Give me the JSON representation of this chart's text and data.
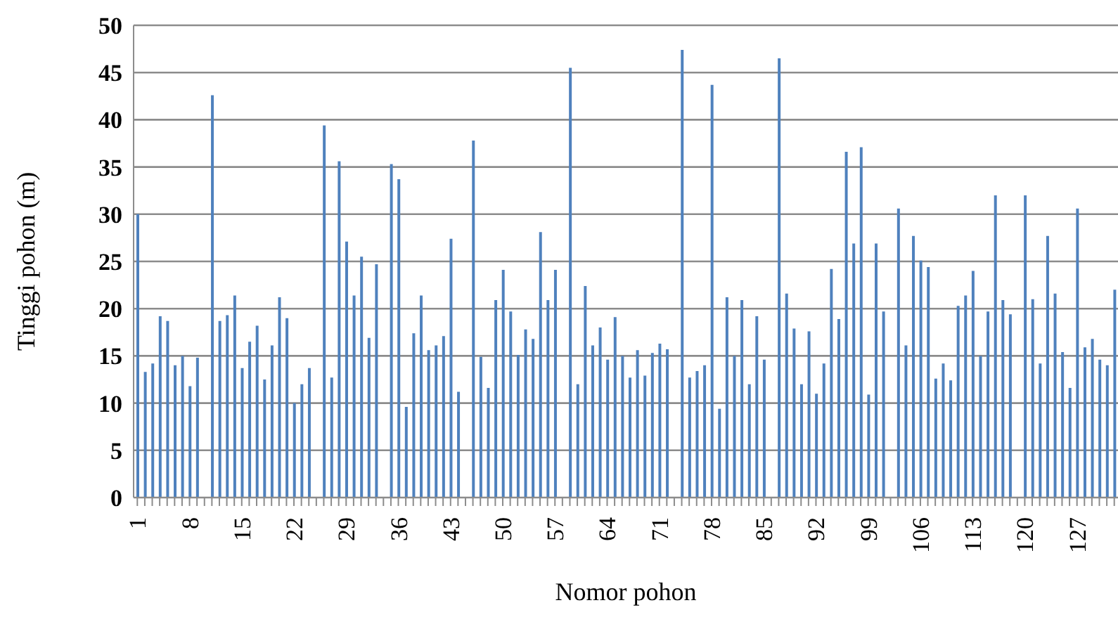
{
  "chart_data": {
    "type": "bar",
    "xlabel": "Nomor pohon",
    "ylabel": "Tinggi pohon (m)",
    "categories": [
      "1",
      null,
      null,
      null,
      null,
      null,
      null,
      "8",
      null,
      null,
      null,
      null,
      null,
      null,
      "15",
      null,
      null,
      null,
      null,
      null,
      null,
      "22",
      null,
      null,
      null,
      null,
      null,
      null,
      "29",
      null,
      null,
      null,
      null,
      null,
      null,
      "36",
      null,
      null,
      null,
      null,
      null,
      null,
      "43",
      null,
      null,
      null,
      null,
      null,
      null,
      "50",
      null,
      null,
      null,
      null,
      null,
      null,
      "57",
      null,
      null,
      null,
      null,
      null,
      null,
      "64",
      null,
      null,
      null,
      null,
      null,
      null,
      "71",
      null,
      null,
      null,
      null,
      null,
      null,
      "78",
      null,
      null,
      null,
      null,
      null,
      null,
      "85",
      null,
      null,
      null,
      null,
      null,
      null,
      "92",
      null,
      null,
      null,
      null,
      null,
      null,
      "99",
      null,
      null,
      null,
      null,
      null,
      null,
      "106",
      null,
      null,
      null,
      null,
      null,
      null,
      "113",
      null,
      null,
      null,
      null,
      null,
      null,
      "120",
      null,
      null,
      null,
      null,
      null,
      null,
      "127",
      null,
      null,
      null,
      null,
      null
    ],
    "values": [
      30,
      13.3,
      14.2,
      19.2,
      18.7,
      14,
      15,
      11.8,
      14.8,
      null,
      42.6,
      18.7,
      19.3,
      21.4,
      13.7,
      16.5,
      18.2,
      12.5,
      16.1,
      21.2,
      19,
      10,
      12,
      13.7,
      null,
      39.4,
      12.7,
      35.6,
      27.1,
      21.4,
      25.5,
      16.9,
      24.7,
      null,
      35.3,
      33.7,
      9.6,
      17.4,
      21.4,
      15.6,
      16.1,
      17.1,
      27.4,
      11.2,
      null,
      37.8,
      14.9,
      11.6,
      20.9,
      24.1,
      19.7,
      15.1,
      17.8,
      16.8,
      28.1,
      20.9,
      24.1,
      null,
      45.5,
      12,
      22.4,
      16.1,
      18,
      14.6,
      19.1,
      15,
      12.7,
      15.6,
      12.9,
      15.3,
      16.3,
      15.7,
      null,
      47.4,
      12.7,
      13.4,
      14,
      43.7,
      9.4,
      21.2,
      15,
      20.9,
      12,
      19.2,
      14.6,
      null,
      46.5,
      21.6,
      17.9,
      12,
      17.6,
      11,
      14.2,
      24.2,
      18.9,
      36.6,
      26.9,
      37.1,
      10.9,
      26.9,
      19.7,
      null,
      30.6,
      16.1,
      27.7,
      25.1,
      24.4,
      12.6,
      14.2,
      12.4,
      20.3,
      21.4,
      24,
      15,
      19.7,
      32,
      20.9,
      19.4,
      null,
      32,
      21,
      14.2,
      27.7,
      21.6,
      15.4,
      11.6,
      30.6,
      15.9,
      16.8,
      14.6,
      14,
      22
    ],
    "color": "#4f81bd",
    "ylim": [
      0,
      50
    ],
    "yticks": [
      0,
      5,
      10,
      15,
      20,
      25,
      30,
      35,
      40,
      45,
      50
    ],
    "grid": "y"
  }
}
